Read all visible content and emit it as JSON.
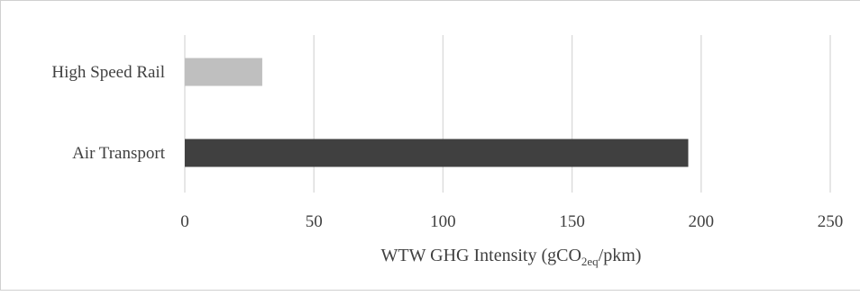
{
  "chart_data": {
    "type": "bar",
    "orientation": "horizontal",
    "categories": [
      "High Speed Rail",
      "Air Transport"
    ],
    "values": [
      30,
      195
    ],
    "bar_colors": [
      "#bfbfbf",
      "#404040"
    ],
    "xlabel": {
      "prefix": "WTW GHG Intensity  (gCO",
      "subscript": "2eq",
      "suffix": "/pkm)"
    },
    "ylabel": "",
    "xlim": [
      0,
      250
    ],
    "xticks": [
      "0",
      "50",
      "100",
      "150",
      "200",
      "250"
    ],
    "grid": true,
    "gridline_color": "#d9d9d9",
    "legend": "none"
  }
}
